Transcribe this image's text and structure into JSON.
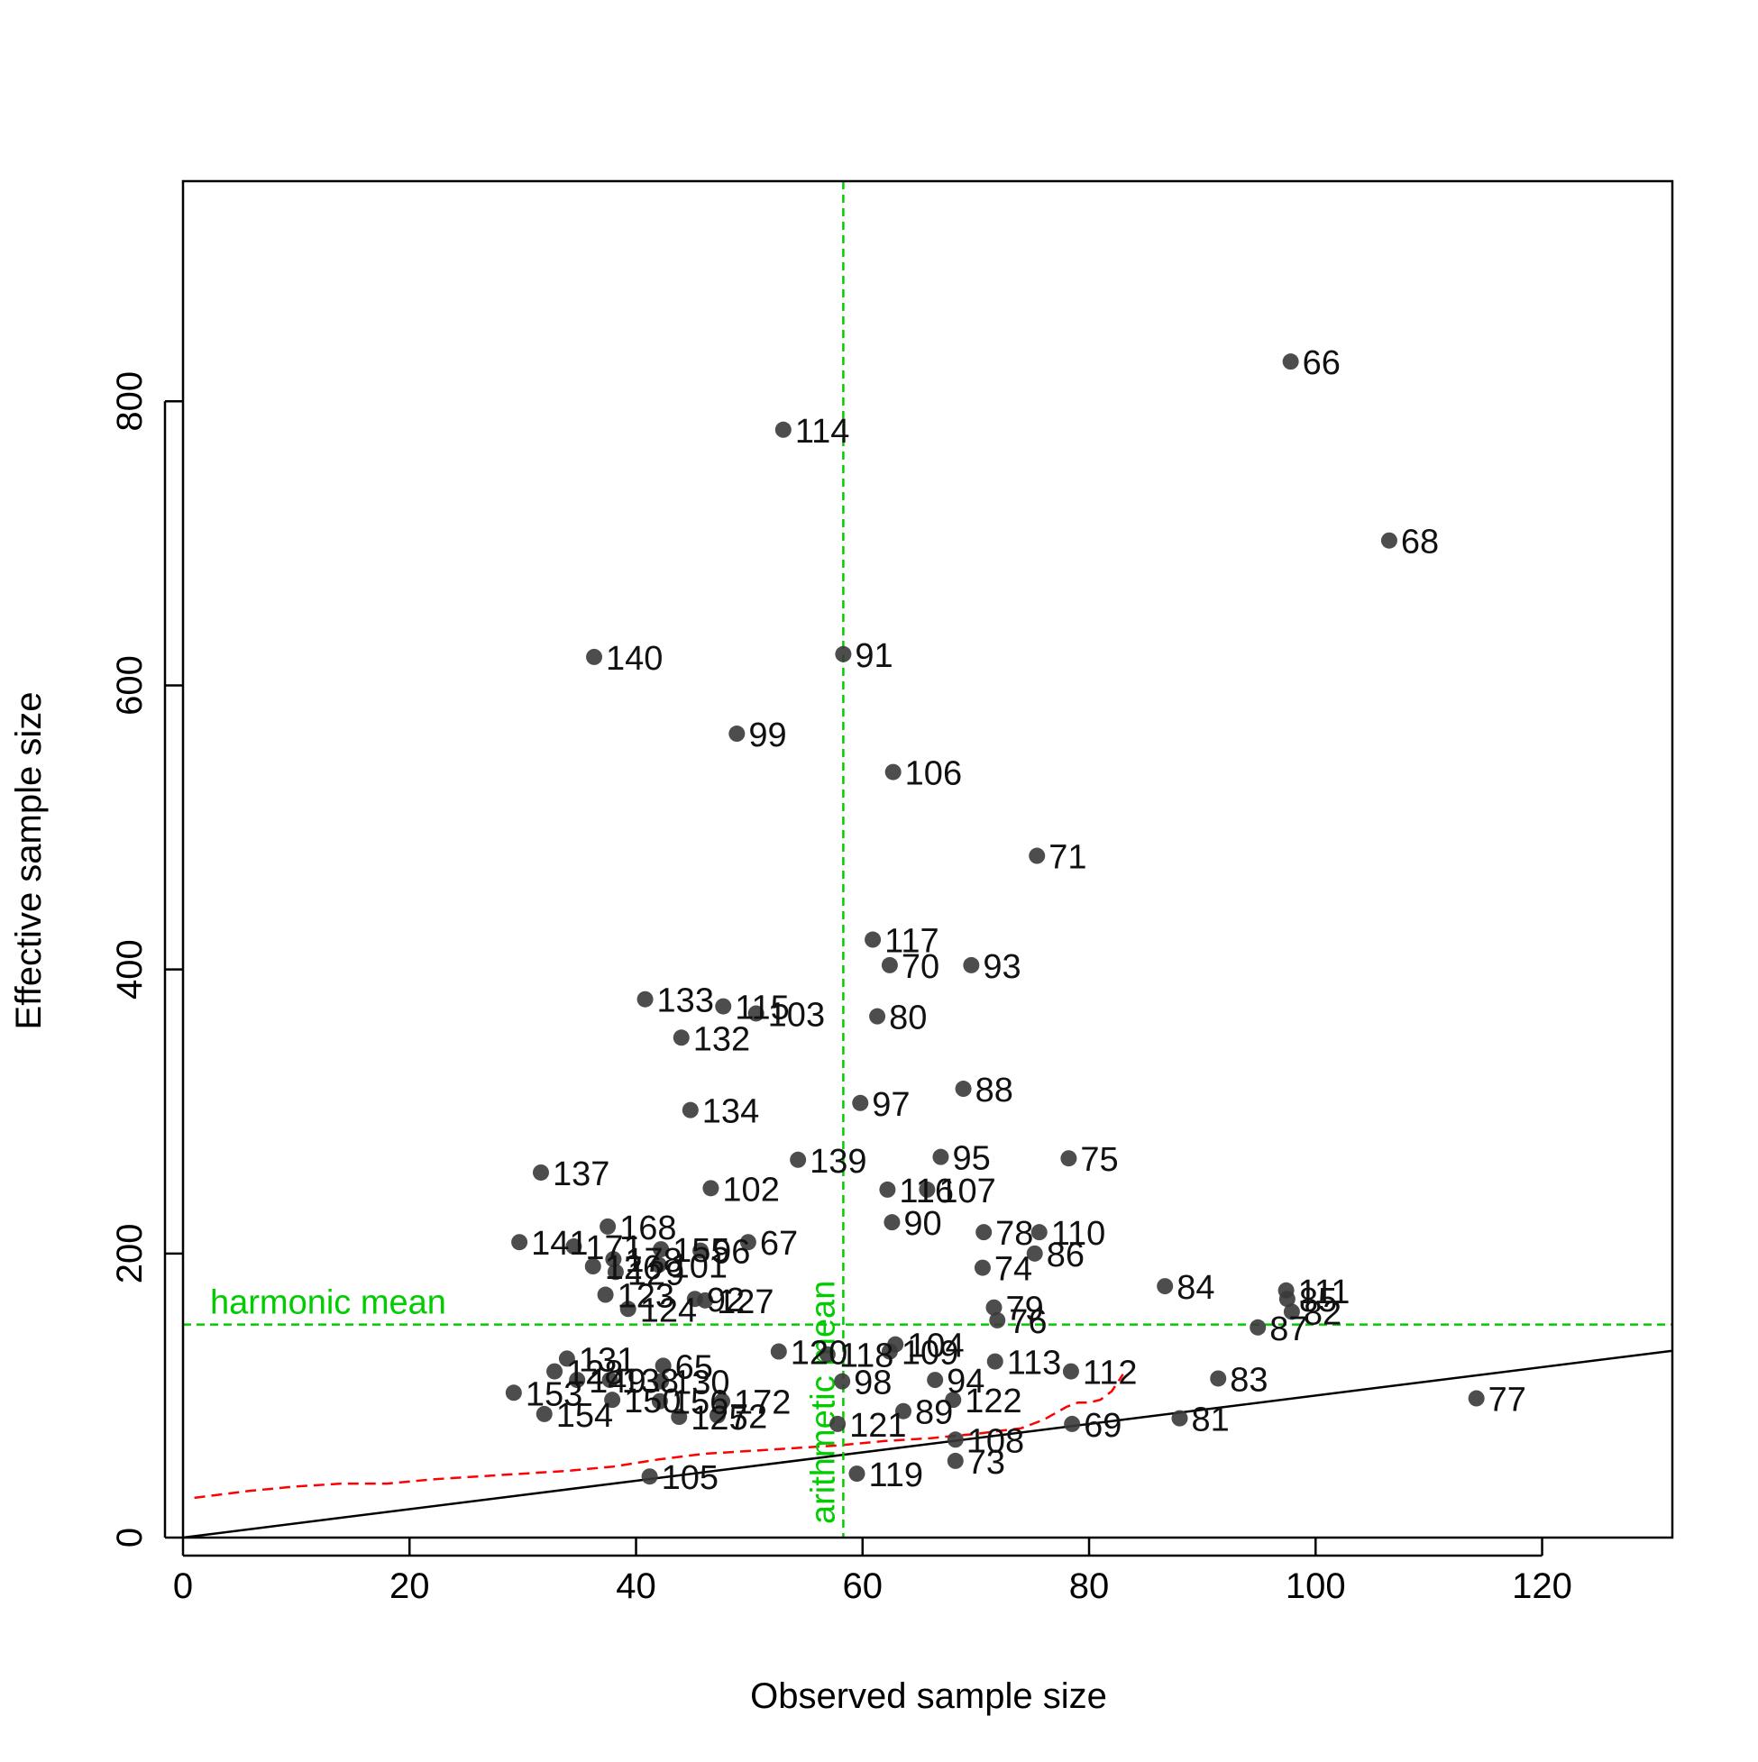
{
  "chart_data": {
    "type": "scatter",
    "title": "",
    "xlabel": "Observed sample size",
    "ylabel": "Effective sample size",
    "xlim": [
      0,
      131.5
    ],
    "ylim": [
      0,
      955
    ],
    "xticks": [
      0,
      20,
      40,
      60,
      80,
      100,
      120
    ],
    "yticks": [
      0,
      200,
      400,
      600,
      800
    ],
    "grid": false,
    "legend": "none",
    "point_color": "#3a3a3a",
    "annotations": {
      "harmonic_mean": {
        "label": "harmonic mean",
        "y": 150,
        "color": "#00cc00"
      },
      "arithmetic_mean": {
        "label": "arithmetic mean",
        "x": 58.3,
        "color": "#00cc00"
      },
      "identity_line": {
        "slope": 1,
        "intercept": 0,
        "color": "#000000"
      },
      "smooth_curve": {
        "color": "#ff0000",
        "x": [
          1,
          6,
          10,
          14,
          18,
          22,
          26,
          30,
          34,
          38,
          42,
          46,
          50,
          54,
          58,
          62,
          66,
          70,
          72,
          74,
          76,
          78,
          79,
          80,
          81,
          82,
          83
        ],
        "y": [
          28,
          33,
          36,
          38,
          38,
          41,
          43,
          45,
          47,
          50,
          55,
          59,
          61,
          63,
          65,
          68,
          70,
          73,
          75,
          77,
          83,
          92,
          95,
          95,
          97,
          103,
          115
        ]
      }
    },
    "points": [
      {
        "label": "66",
        "x": 97.8,
        "y": 828
      },
      {
        "label": "114",
        "x": 53.0,
        "y": 780
      },
      {
        "label": "68",
        "x": 106.5,
        "y": 702
      },
      {
        "label": "140",
        "x": 36.3,
        "y": 620
      },
      {
        "label": "91",
        "x": 58.3,
        "y": 622
      },
      {
        "label": "99",
        "x": 48.9,
        "y": 566
      },
      {
        "label": "106",
        "x": 62.7,
        "y": 539
      },
      {
        "label": "71",
        "x": 75.4,
        "y": 480
      },
      {
        "label": "117",
        "x": 60.9,
        "y": 421
      },
      {
        "label": "70",
        "x": 62.4,
        "y": 403
      },
      {
        "label": "93",
        "x": 69.6,
        "y": 403
      },
      {
        "label": "133",
        "x": 40.8,
        "y": 379
      },
      {
        "label": "115",
        "x": 47.7,
        "y": 374
      },
      {
        "label": "103",
        "x": 50.6,
        "y": 369
      },
      {
        "label": "80",
        "x": 61.3,
        "y": 367
      },
      {
        "label": "132",
        "x": 44.0,
        "y": 352
      },
      {
        "label": "88",
        "x": 68.9,
        "y": 316
      },
      {
        "label": "97",
        "x": 59.8,
        "y": 306
      },
      {
        "label": "134",
        "x": 44.8,
        "y": 301
      },
      {
        "label": "95",
        "x": 66.9,
        "y": 268
      },
      {
        "label": "75",
        "x": 78.2,
        "y": 267
      },
      {
        "label": "139",
        "x": 54.3,
        "y": 266
      },
      {
        "label": "137",
        "x": 31.6,
        "y": 257
      },
      {
        "label": "102",
        "x": 46.6,
        "y": 246
      },
      {
        "label": "116",
        "x": 62.2,
        "y": 245
      },
      {
        "label": "107",
        "x": 65.7,
        "y": 245
      },
      {
        "label": "90",
        "x": 62.6,
        "y": 222
      },
      {
        "label": "168",
        "x": 37.5,
        "y": 219
      },
      {
        "label": "78",
        "x": 70.7,
        "y": 215
      },
      {
        "label": "110",
        "x": 75.6,
        "y": 215
      },
      {
        "label": "141",
        "x": 29.7,
        "y": 208
      },
      {
        "label": "171",
        "x": 34.5,
        "y": 205
      },
      {
        "label": "67",
        "x": 49.9,
        "y": 208
      },
      {
        "label": "155",
        "x": 42.2,
        "y": 203
      },
      {
        "label": "96",
        "x": 45.7,
        "y": 202
      },
      {
        "label": "86",
        "x": 75.2,
        "y": 200
      },
      {
        "label": "178",
        "x": 38.0,
        "y": 196
      },
      {
        "label": "101",
        "x": 42.0,
        "y": 192
      },
      {
        "label": "126",
        "x": 36.2,
        "y": 191
      },
      {
        "label": "129",
        "x": 38.2,
        "y": 187
      },
      {
        "label": "74",
        "x": 70.6,
        "y": 190
      },
      {
        "label": "84",
        "x": 86.7,
        "y": 177
      },
      {
        "label": "111",
        "x": 97.4,
        "y": 174
      },
      {
        "label": "85",
        "x": 97.5,
        "y": 168
      },
      {
        "label": "92",
        "x": 45.2,
        "y": 168
      },
      {
        "label": "127",
        "x": 46.1,
        "y": 167
      },
      {
        "label": "123",
        "x": 37.3,
        "y": 171
      },
      {
        "label": "82",
        "x": 97.9,
        "y": 159
      },
      {
        "label": "124",
        "x": 39.3,
        "y": 161
      },
      {
        "label": "79",
        "x": 71.6,
        "y": 162
      },
      {
        "label": "76",
        "x": 71.9,
        "y": 153
      },
      {
        "label": "87",
        "x": 94.9,
        "y": 148
      },
      {
        "label": "120",
        "x": 52.6,
        "y": 131
      },
      {
        "label": "118",
        "x": 56.9,
        "y": 129
      },
      {
        "label": "104",
        "x": 62.9,
        "y": 136
      },
      {
        "label": "109",
        "x": 62.4,
        "y": 131
      },
      {
        "label": "131",
        "x": 33.9,
        "y": 126
      },
      {
        "label": "113",
        "x": 71.7,
        "y": 124
      },
      {
        "label": "65",
        "x": 42.4,
        "y": 121
      },
      {
        "label": "128",
        "x": 32.8,
        "y": 117
      },
      {
        "label": "149",
        "x": 34.8,
        "y": 111
      },
      {
        "label": "138",
        "x": 37.7,
        "y": 111
      },
      {
        "label": "112",
        "x": 78.4,
        "y": 117
      },
      {
        "label": "130",
        "x": 42.2,
        "y": 110
      },
      {
        "label": "94",
        "x": 66.4,
        "y": 111
      },
      {
        "label": "83",
        "x": 91.4,
        "y": 112
      },
      {
        "label": "98",
        "x": 58.2,
        "y": 110
      },
      {
        "label": "153",
        "x": 29.2,
        "y": 102
      },
      {
        "label": "150",
        "x": 37.9,
        "y": 97
      },
      {
        "label": "156",
        "x": 42.1,
        "y": 96
      },
      {
        "label": "172",
        "x": 47.6,
        "y": 96
      },
      {
        "label": "122",
        "x": 68.0,
        "y": 97
      },
      {
        "label": "77",
        "x": 114.2,
        "y": 98
      },
      {
        "label": "154",
        "x": 31.9,
        "y": 87
      },
      {
        "label": "125",
        "x": 43.8,
        "y": 85
      },
      {
        "label": "72",
        "x": 47.2,
        "y": 86
      },
      {
        "label": "89",
        "x": 63.6,
        "y": 89
      },
      {
        "label": "81",
        "x": 88.0,
        "y": 84
      },
      {
        "label": "121",
        "x": 57.8,
        "y": 80
      },
      {
        "label": "69",
        "x": 78.5,
        "y": 80
      },
      {
        "label": "108",
        "x": 68.2,
        "y": 69
      },
      {
        "label": "73",
        "x": 68.2,
        "y": 54
      },
      {
        "label": "105",
        "x": 41.2,
        "y": 43
      },
      {
        "label": "119",
        "x": 59.5,
        "y": 45
      }
    ]
  }
}
